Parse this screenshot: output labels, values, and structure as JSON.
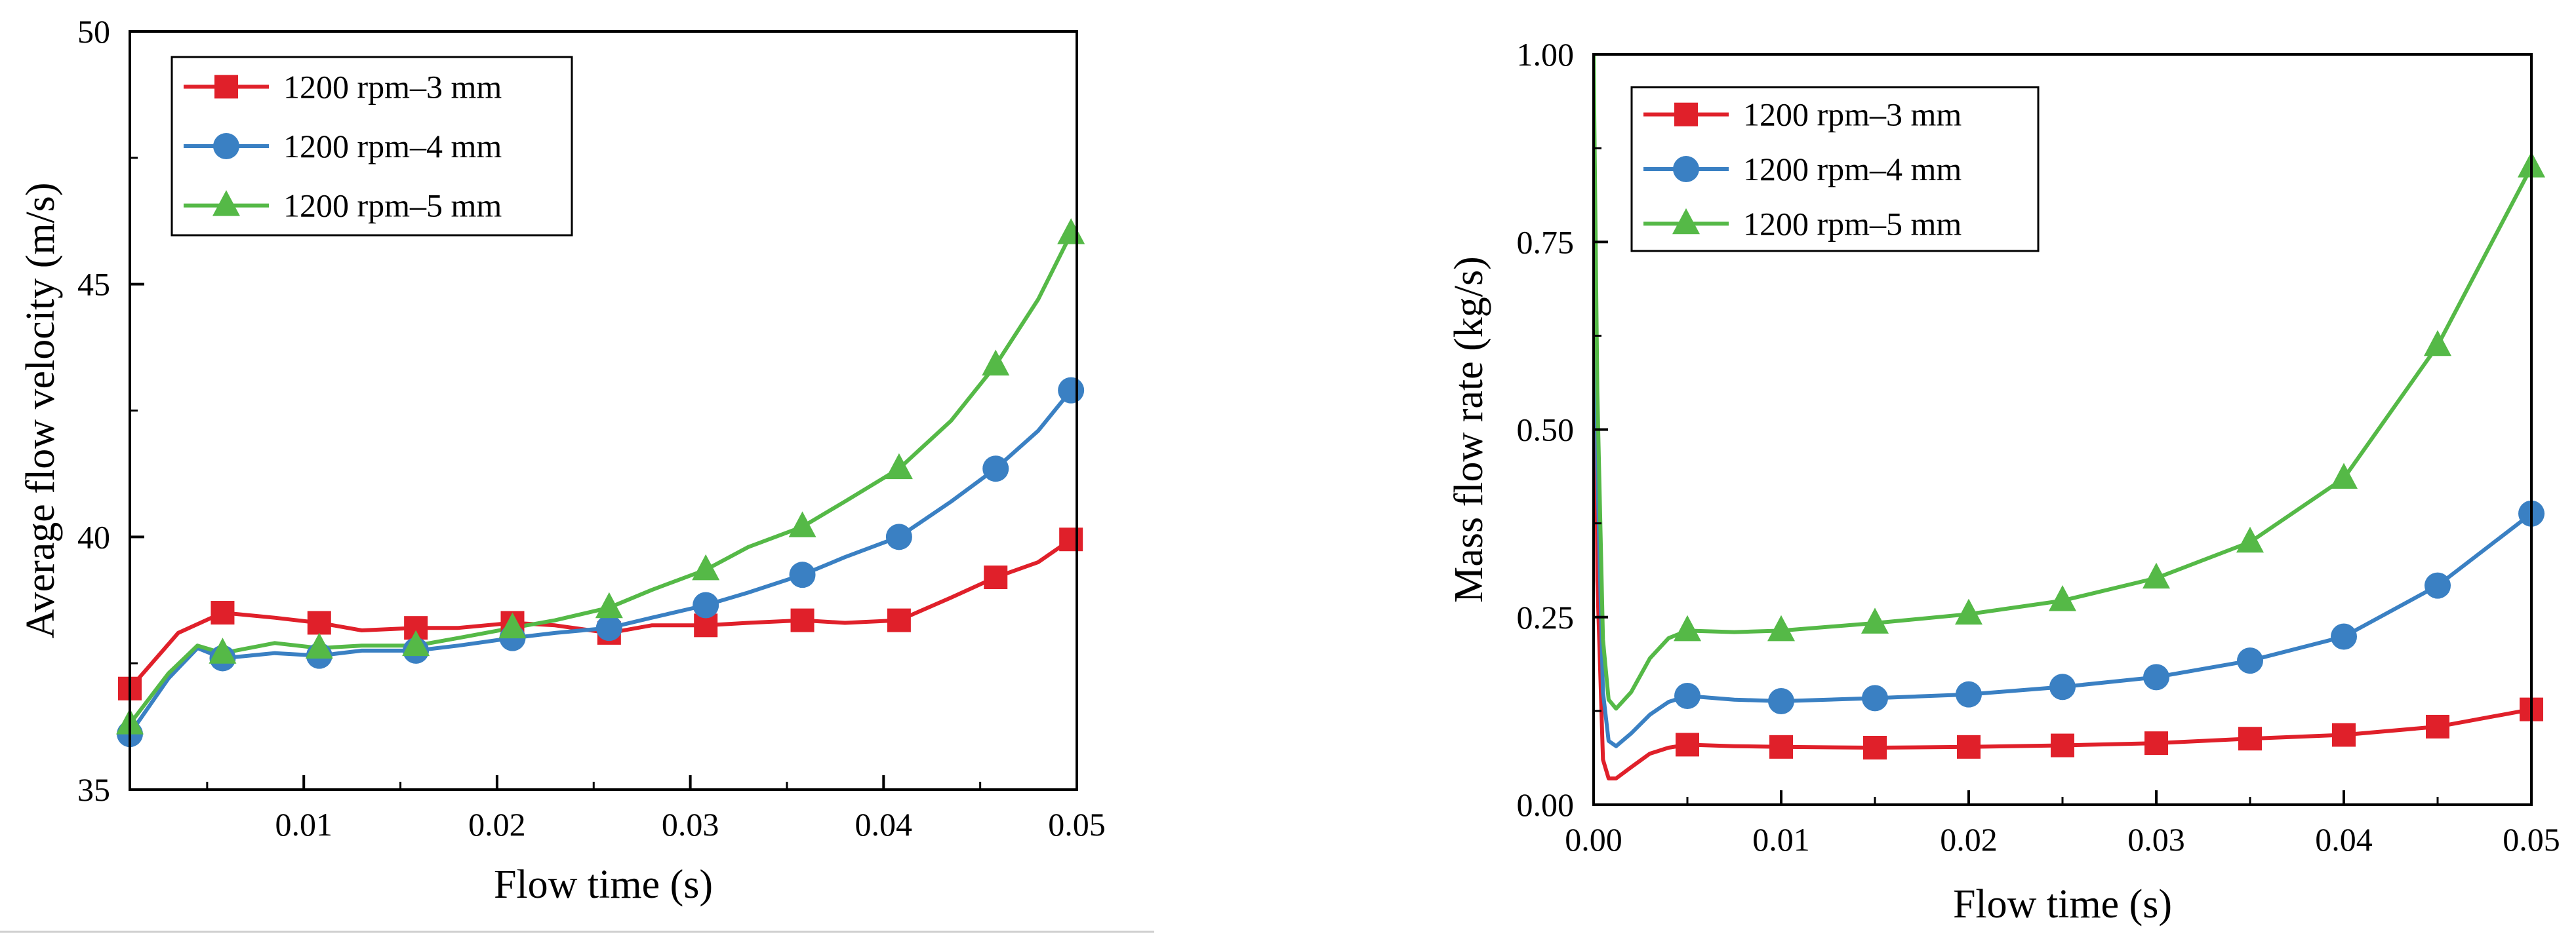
{
  "colors": {
    "red": "#e0202a",
    "blue": "#3a80c3",
    "green": "#55b947",
    "axis": "#000000"
  },
  "chart_data": [
    {
      "type": "line",
      "xlabel": "Flow time (s)",
      "ylabel": "Average flow velocity (m/s)",
      "xlim": [
        0.001,
        0.05
      ],
      "ylim": [
        35,
        50
      ],
      "xticks": [
        0.01,
        0.02,
        0.03,
        0.04,
        0.05
      ],
      "xtick_labels": [
        "0.01",
        "0.02",
        "0.03",
        "0.04",
        "0.05"
      ],
      "yticks": [
        35,
        40,
        45,
        50
      ],
      "ytick_labels": [
        "35",
        "40",
        "45",
        "50"
      ],
      "legend_position": "top-left",
      "series": [
        {
          "name": "1200 rpm–3 mm",
          "color": "red",
          "marker": "square",
          "x": [
            0.001,
            0.0035,
            0.0058,
            0.0085,
            0.0108,
            0.013,
            0.0158,
            0.018,
            0.0208,
            0.023,
            0.0258,
            0.028,
            0.0308,
            0.033,
            0.0358,
            0.038,
            0.0408,
            0.0435,
            0.0458,
            0.048,
            0.0497
          ],
          "y": [
            37.0,
            38.1,
            38.5,
            38.4,
            38.3,
            38.15,
            38.2,
            38.2,
            38.3,
            38.25,
            38.1,
            38.25,
            38.25,
            38.3,
            38.35,
            38.3,
            38.35,
            38.8,
            39.2,
            39.5,
            39.95
          ],
          "marker_x": [
            0.001,
            0.0058,
            0.0108,
            0.0158,
            0.0208,
            0.0258,
            0.0308,
            0.0358,
            0.0408,
            0.0458,
            0.0497
          ],
          "marker_y": [
            37.0,
            38.5,
            38.3,
            38.2,
            38.3,
            38.1,
            38.25,
            38.35,
            38.35,
            39.2,
            39.95
          ]
        },
        {
          "name": "1200 rpm–4 mm",
          "color": "blue",
          "marker": "circle",
          "x": [
            0.001,
            0.003,
            0.0045,
            0.0058,
            0.0085,
            0.0108,
            0.013,
            0.0158,
            0.018,
            0.0208,
            0.023,
            0.0258,
            0.028,
            0.0308,
            0.033,
            0.0358,
            0.038,
            0.0408,
            0.0435,
            0.0458,
            0.048,
            0.0497
          ],
          "y": [
            36.1,
            37.2,
            37.8,
            37.6,
            37.7,
            37.65,
            37.75,
            37.75,
            37.85,
            38.0,
            38.1,
            38.2,
            38.4,
            38.65,
            38.9,
            39.25,
            39.6,
            40.0,
            40.7,
            41.35,
            42.1,
            42.9
          ],
          "marker_x": [
            0.001,
            0.0058,
            0.0108,
            0.0158,
            0.0208,
            0.0258,
            0.0308,
            0.0358,
            0.0408,
            0.0458,
            0.0497
          ],
          "marker_y": [
            36.1,
            37.6,
            37.65,
            37.75,
            38.0,
            38.2,
            38.65,
            39.25,
            40.0,
            41.35,
            42.9
          ]
        },
        {
          "name": "1200 rpm–5 mm",
          "color": "green",
          "marker": "triangle",
          "x": [
            0.001,
            0.003,
            0.0045,
            0.0058,
            0.0085,
            0.0108,
            0.013,
            0.0158,
            0.018,
            0.0208,
            0.023,
            0.0258,
            0.028,
            0.0308,
            0.033,
            0.0358,
            0.038,
            0.0408,
            0.0435,
            0.0458,
            0.048,
            0.0497
          ],
          "y": [
            36.3,
            37.3,
            37.85,
            37.7,
            37.9,
            37.8,
            37.85,
            37.85,
            38.0,
            38.2,
            38.35,
            38.6,
            38.95,
            39.35,
            39.8,
            40.2,
            40.7,
            41.35,
            42.3,
            43.4,
            44.7,
            46.0
          ],
          "marker_x": [
            0.001,
            0.0058,
            0.0108,
            0.0158,
            0.0208,
            0.0258,
            0.0308,
            0.0358,
            0.0408,
            0.0458,
            0.0497
          ],
          "marker_y": [
            36.3,
            37.7,
            37.8,
            37.85,
            38.2,
            38.6,
            39.35,
            40.2,
            41.35,
            43.4,
            46.0
          ]
        }
      ]
    },
    {
      "type": "line",
      "xlabel": "Flow time (s)",
      "ylabel": "Mass flow rate (kg/s)",
      "xlim": [
        0,
        0.05
      ],
      "ylim": [
        0,
        1
      ],
      "xticks": [
        0,
        0.01,
        0.02,
        0.03,
        0.04,
        0.05
      ],
      "xtick_labels": [
        "0.00",
        "0.01",
        "0.02",
        "0.03",
        "0.04",
        "0.05"
      ],
      "yticks": [
        0,
        0.25,
        0.5,
        0.75,
        1
      ],
      "ytick_labels": [
        "0.00",
        "0.25",
        "0.50",
        "0.75",
        "1.00"
      ],
      "legend_position": "top-left",
      "series": [
        {
          "name": "1200 rpm–3 mm",
          "color": "red",
          "marker": "square",
          "x": [
            0.0,
            0.0002,
            0.0005,
            0.0008,
            0.0012,
            0.002,
            0.003,
            0.004,
            0.005,
            0.0075,
            0.01,
            0.015,
            0.02,
            0.025,
            0.03,
            0.035,
            0.04,
            0.045,
            0.05
          ],
          "y": [
            0.95,
            0.3,
            0.06,
            0.035,
            0.035,
            0.05,
            0.068,
            0.076,
            0.08,
            0.078,
            0.077,
            0.076,
            0.077,
            0.079,
            0.082,
            0.088,
            0.093,
            0.104,
            0.127
          ],
          "marker_x": [
            0.005,
            0.01,
            0.015,
            0.02,
            0.025,
            0.03,
            0.035,
            0.04,
            0.045,
            0.05
          ],
          "marker_y": [
            0.08,
            0.077,
            0.076,
            0.077,
            0.079,
            0.082,
            0.088,
            0.093,
            0.104,
            0.127
          ]
        },
        {
          "name": "1200 rpm–4 mm",
          "color": "blue",
          "marker": "circle",
          "x": [
            0.0,
            0.0002,
            0.0005,
            0.0008,
            0.0012,
            0.002,
            0.003,
            0.004,
            0.005,
            0.0075,
            0.01,
            0.015,
            0.02,
            0.025,
            0.03,
            0.035,
            0.04,
            0.045,
            0.05
          ],
          "y": [
            0.97,
            0.45,
            0.15,
            0.085,
            0.078,
            0.095,
            0.12,
            0.137,
            0.145,
            0.14,
            0.138,
            0.142,
            0.147,
            0.157,
            0.17,
            0.192,
            0.224,
            0.292,
            0.388
          ],
          "marker_x": [
            0.005,
            0.01,
            0.015,
            0.02,
            0.025,
            0.03,
            0.035,
            0.04,
            0.045,
            0.05
          ],
          "marker_y": [
            0.145,
            0.138,
            0.142,
            0.147,
            0.157,
            0.17,
            0.192,
            0.224,
            0.292,
            0.388
          ]
        },
        {
          "name": "1200 rpm–5 mm",
          "color": "green",
          "marker": "triangle",
          "x": [
            0.0,
            0.0002,
            0.0005,
            0.0008,
            0.0012,
            0.002,
            0.003,
            0.004,
            0.005,
            0.0075,
            0.01,
            0.015,
            0.02,
            0.025,
            0.03,
            0.035,
            0.04,
            0.045,
            0.05
          ],
          "y": [
            1.0,
            0.55,
            0.22,
            0.14,
            0.128,
            0.15,
            0.195,
            0.222,
            0.232,
            0.23,
            0.232,
            0.242,
            0.254,
            0.272,
            0.302,
            0.35,
            0.435,
            0.612,
            0.85
          ],
          "marker_x": [
            0.005,
            0.01,
            0.015,
            0.02,
            0.025,
            0.03,
            0.035,
            0.04,
            0.045,
            0.05
          ],
          "marker_y": [
            0.232,
            0.232,
            0.242,
            0.254,
            0.272,
            0.302,
            0.35,
            0.435,
            0.612,
            0.85
          ]
        }
      ]
    }
  ]
}
